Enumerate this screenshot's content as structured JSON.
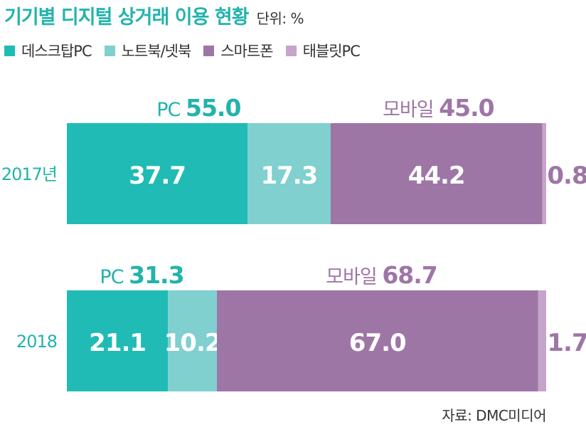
{
  "header": {
    "title": "기기별 디지털 상거래 이용 현황",
    "unit": "단위: %"
  },
  "colors": {
    "title": "#22b3ac",
    "desktop": "#21bbb5",
    "laptop": "#7fd0cf",
    "smartphone": "#9e76a6",
    "tablet": "#c7a4c9",
    "pc_group_label": "#22b3ac",
    "mobile_group_label": "#9e76a6",
    "row_label": "#22b3ac"
  },
  "legend": [
    {
      "label": "데스크탑PC",
      "color_key": "desktop"
    },
    {
      "label": "노트북/넷북",
      "color_key": "laptop"
    },
    {
      "label": "스마트폰",
      "color_key": "smartphone"
    },
    {
      "label": "태블릿PC",
      "color_key": "tablet"
    }
  ],
  "chart_data": {
    "type": "bar",
    "stacked": true,
    "orientation": "horizontal",
    "categories": [
      "2017년",
      "2018"
    ],
    "series": [
      {
        "name": "데스크탑PC",
        "values": [
          37.7,
          21.1
        ],
        "labels": [
          "37.7",
          "21.1"
        ]
      },
      {
        "name": "노트북/넷북",
        "values": [
          17.3,
          10.2
        ],
        "labels": [
          "17.3",
          "10.2"
        ]
      },
      {
        "name": "스마트폰",
        "values": [
          44.2,
          67.0
        ],
        "labels": [
          "44.2",
          "67.0"
        ]
      },
      {
        "name": "태블릿PC",
        "values": [
          0.8,
          1.7
        ],
        "labels": [
          "0.8",
          "1.7"
        ]
      }
    ],
    "groups": [
      {
        "name": "PC",
        "values": [
          55.0,
          31.3
        ],
        "labels": [
          "55.0",
          "31.3"
        ]
      },
      {
        "name": "모바일",
        "values": [
          45.0,
          68.7
        ],
        "labels": [
          "45.0",
          "68.7"
        ]
      }
    ],
    "xlim": [
      0,
      100
    ]
  },
  "footer": {
    "source": "자료: DMC미디어"
  }
}
